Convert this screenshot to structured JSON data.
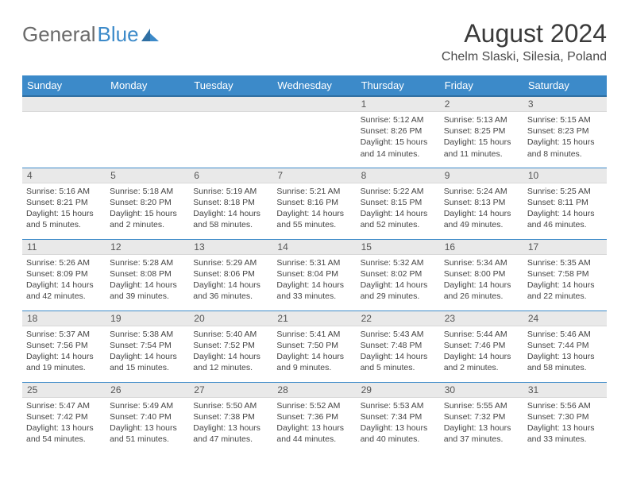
{
  "brand": {
    "general": "General",
    "blue": "Blue"
  },
  "title": "August 2024",
  "location": "Chelm Slaski, Silesia, Poland",
  "colors": {
    "header_bg": "#3c8ac9",
    "header_text": "#ffffff",
    "daynum_bg": "#e9e9e9",
    "border": "#3c8ac9",
    "body_text": "#444444"
  },
  "day_headers": [
    "Sunday",
    "Monday",
    "Tuesday",
    "Wednesday",
    "Thursday",
    "Friday",
    "Saturday"
  ],
  "weeks": [
    [
      null,
      null,
      null,
      null,
      {
        "n": "1",
        "sr": "5:12 AM",
        "ss": "8:26 PM",
        "dl": "15 hours and 14 minutes."
      },
      {
        "n": "2",
        "sr": "5:13 AM",
        "ss": "8:25 PM",
        "dl": "15 hours and 11 minutes."
      },
      {
        "n": "3",
        "sr": "5:15 AM",
        "ss": "8:23 PM",
        "dl": "15 hours and 8 minutes."
      }
    ],
    [
      {
        "n": "4",
        "sr": "5:16 AM",
        "ss": "8:21 PM",
        "dl": "15 hours and 5 minutes."
      },
      {
        "n": "5",
        "sr": "5:18 AM",
        "ss": "8:20 PM",
        "dl": "15 hours and 2 minutes."
      },
      {
        "n": "6",
        "sr": "5:19 AM",
        "ss": "8:18 PM",
        "dl": "14 hours and 58 minutes."
      },
      {
        "n": "7",
        "sr": "5:21 AM",
        "ss": "8:16 PM",
        "dl": "14 hours and 55 minutes."
      },
      {
        "n": "8",
        "sr": "5:22 AM",
        "ss": "8:15 PM",
        "dl": "14 hours and 52 minutes."
      },
      {
        "n": "9",
        "sr": "5:24 AM",
        "ss": "8:13 PM",
        "dl": "14 hours and 49 minutes."
      },
      {
        "n": "10",
        "sr": "5:25 AM",
        "ss": "8:11 PM",
        "dl": "14 hours and 46 minutes."
      }
    ],
    [
      {
        "n": "11",
        "sr": "5:26 AM",
        "ss": "8:09 PM",
        "dl": "14 hours and 42 minutes."
      },
      {
        "n": "12",
        "sr": "5:28 AM",
        "ss": "8:08 PM",
        "dl": "14 hours and 39 minutes."
      },
      {
        "n": "13",
        "sr": "5:29 AM",
        "ss": "8:06 PM",
        "dl": "14 hours and 36 minutes."
      },
      {
        "n": "14",
        "sr": "5:31 AM",
        "ss": "8:04 PM",
        "dl": "14 hours and 33 minutes."
      },
      {
        "n": "15",
        "sr": "5:32 AM",
        "ss": "8:02 PM",
        "dl": "14 hours and 29 minutes."
      },
      {
        "n": "16",
        "sr": "5:34 AM",
        "ss": "8:00 PM",
        "dl": "14 hours and 26 minutes."
      },
      {
        "n": "17",
        "sr": "5:35 AM",
        "ss": "7:58 PM",
        "dl": "14 hours and 22 minutes."
      }
    ],
    [
      {
        "n": "18",
        "sr": "5:37 AM",
        "ss": "7:56 PM",
        "dl": "14 hours and 19 minutes."
      },
      {
        "n": "19",
        "sr": "5:38 AM",
        "ss": "7:54 PM",
        "dl": "14 hours and 15 minutes."
      },
      {
        "n": "20",
        "sr": "5:40 AM",
        "ss": "7:52 PM",
        "dl": "14 hours and 12 minutes."
      },
      {
        "n": "21",
        "sr": "5:41 AM",
        "ss": "7:50 PM",
        "dl": "14 hours and 9 minutes."
      },
      {
        "n": "22",
        "sr": "5:43 AM",
        "ss": "7:48 PM",
        "dl": "14 hours and 5 minutes."
      },
      {
        "n": "23",
        "sr": "5:44 AM",
        "ss": "7:46 PM",
        "dl": "14 hours and 2 minutes."
      },
      {
        "n": "24",
        "sr": "5:46 AM",
        "ss": "7:44 PM",
        "dl": "13 hours and 58 minutes."
      }
    ],
    [
      {
        "n": "25",
        "sr": "5:47 AM",
        "ss": "7:42 PM",
        "dl": "13 hours and 54 minutes."
      },
      {
        "n": "26",
        "sr": "5:49 AM",
        "ss": "7:40 PM",
        "dl": "13 hours and 51 minutes."
      },
      {
        "n": "27",
        "sr": "5:50 AM",
        "ss": "7:38 PM",
        "dl": "13 hours and 47 minutes."
      },
      {
        "n": "28",
        "sr": "5:52 AM",
        "ss": "7:36 PM",
        "dl": "13 hours and 44 minutes."
      },
      {
        "n": "29",
        "sr": "5:53 AM",
        "ss": "7:34 PM",
        "dl": "13 hours and 40 minutes."
      },
      {
        "n": "30",
        "sr": "5:55 AM",
        "ss": "7:32 PM",
        "dl": "13 hours and 37 minutes."
      },
      {
        "n": "31",
        "sr": "5:56 AM",
        "ss": "7:30 PM",
        "dl": "13 hours and 33 minutes."
      }
    ]
  ],
  "labels": {
    "sunrise": "Sunrise:",
    "sunset": "Sunset:",
    "daylight": "Daylight:"
  }
}
